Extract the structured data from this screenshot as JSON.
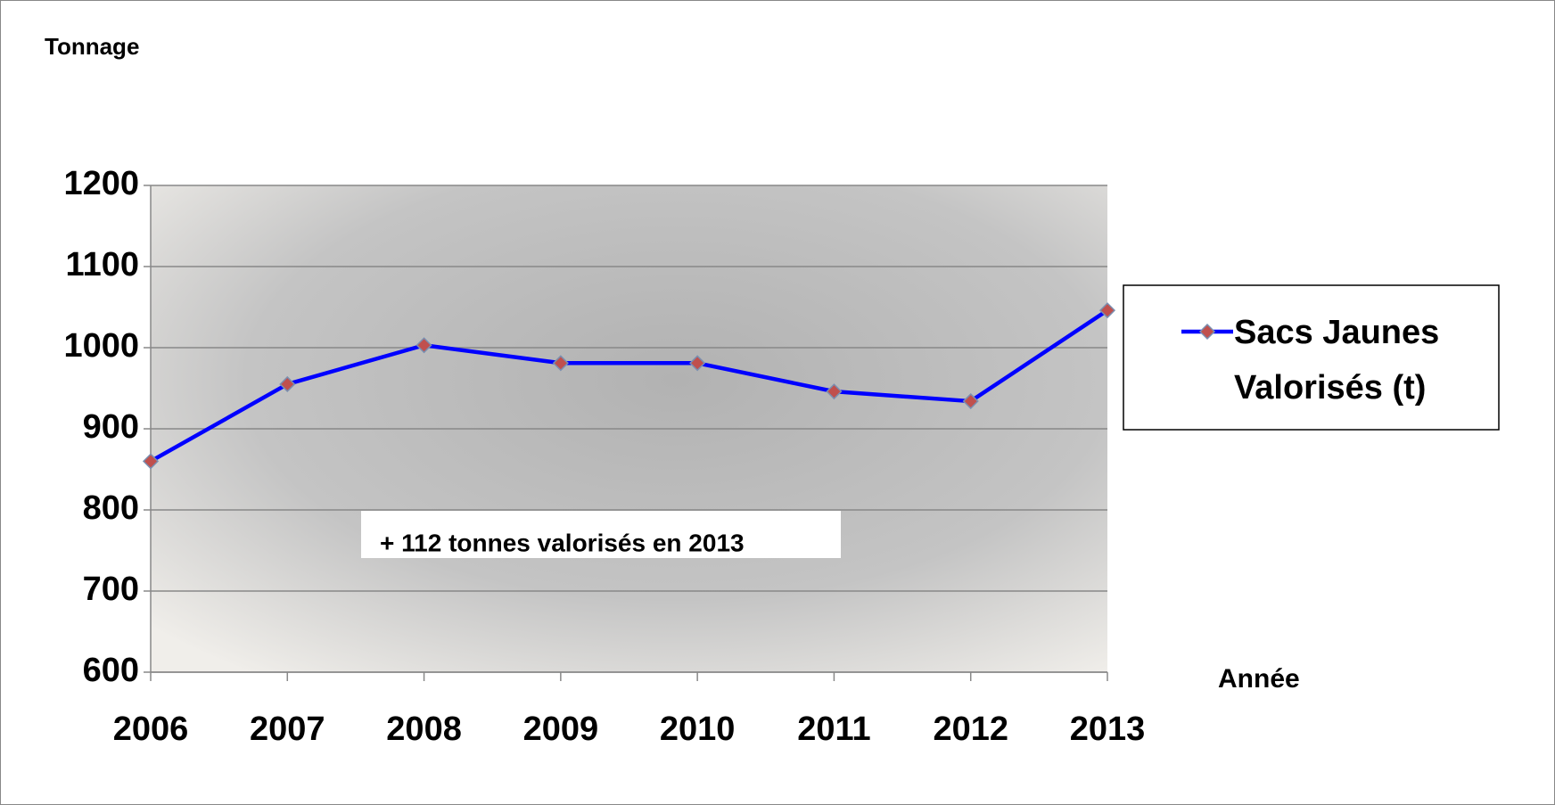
{
  "chart_data": {
    "type": "line",
    "y_label": "Tonnage",
    "x_label": "Année",
    "annotation": "+ 112 tonnes valorisés en 2013",
    "categories": [
      "2006",
      "2007",
      "2008",
      "2009",
      "2010",
      "2011",
      "2012",
      "2013"
    ],
    "series": [
      {
        "name": "Sacs Jaunes Valorisés (t)",
        "color": "#0000ff",
        "marker_color": "#c0504d",
        "values": [
          860,
          955,
          1003,
          981,
          981,
          946,
          934,
          1046
        ]
      }
    ],
    "ylim": [
      600,
      1200
    ],
    "yticks": [
      600,
      700,
      800,
      900,
      1000,
      1100,
      1200
    ],
    "grid": true
  }
}
